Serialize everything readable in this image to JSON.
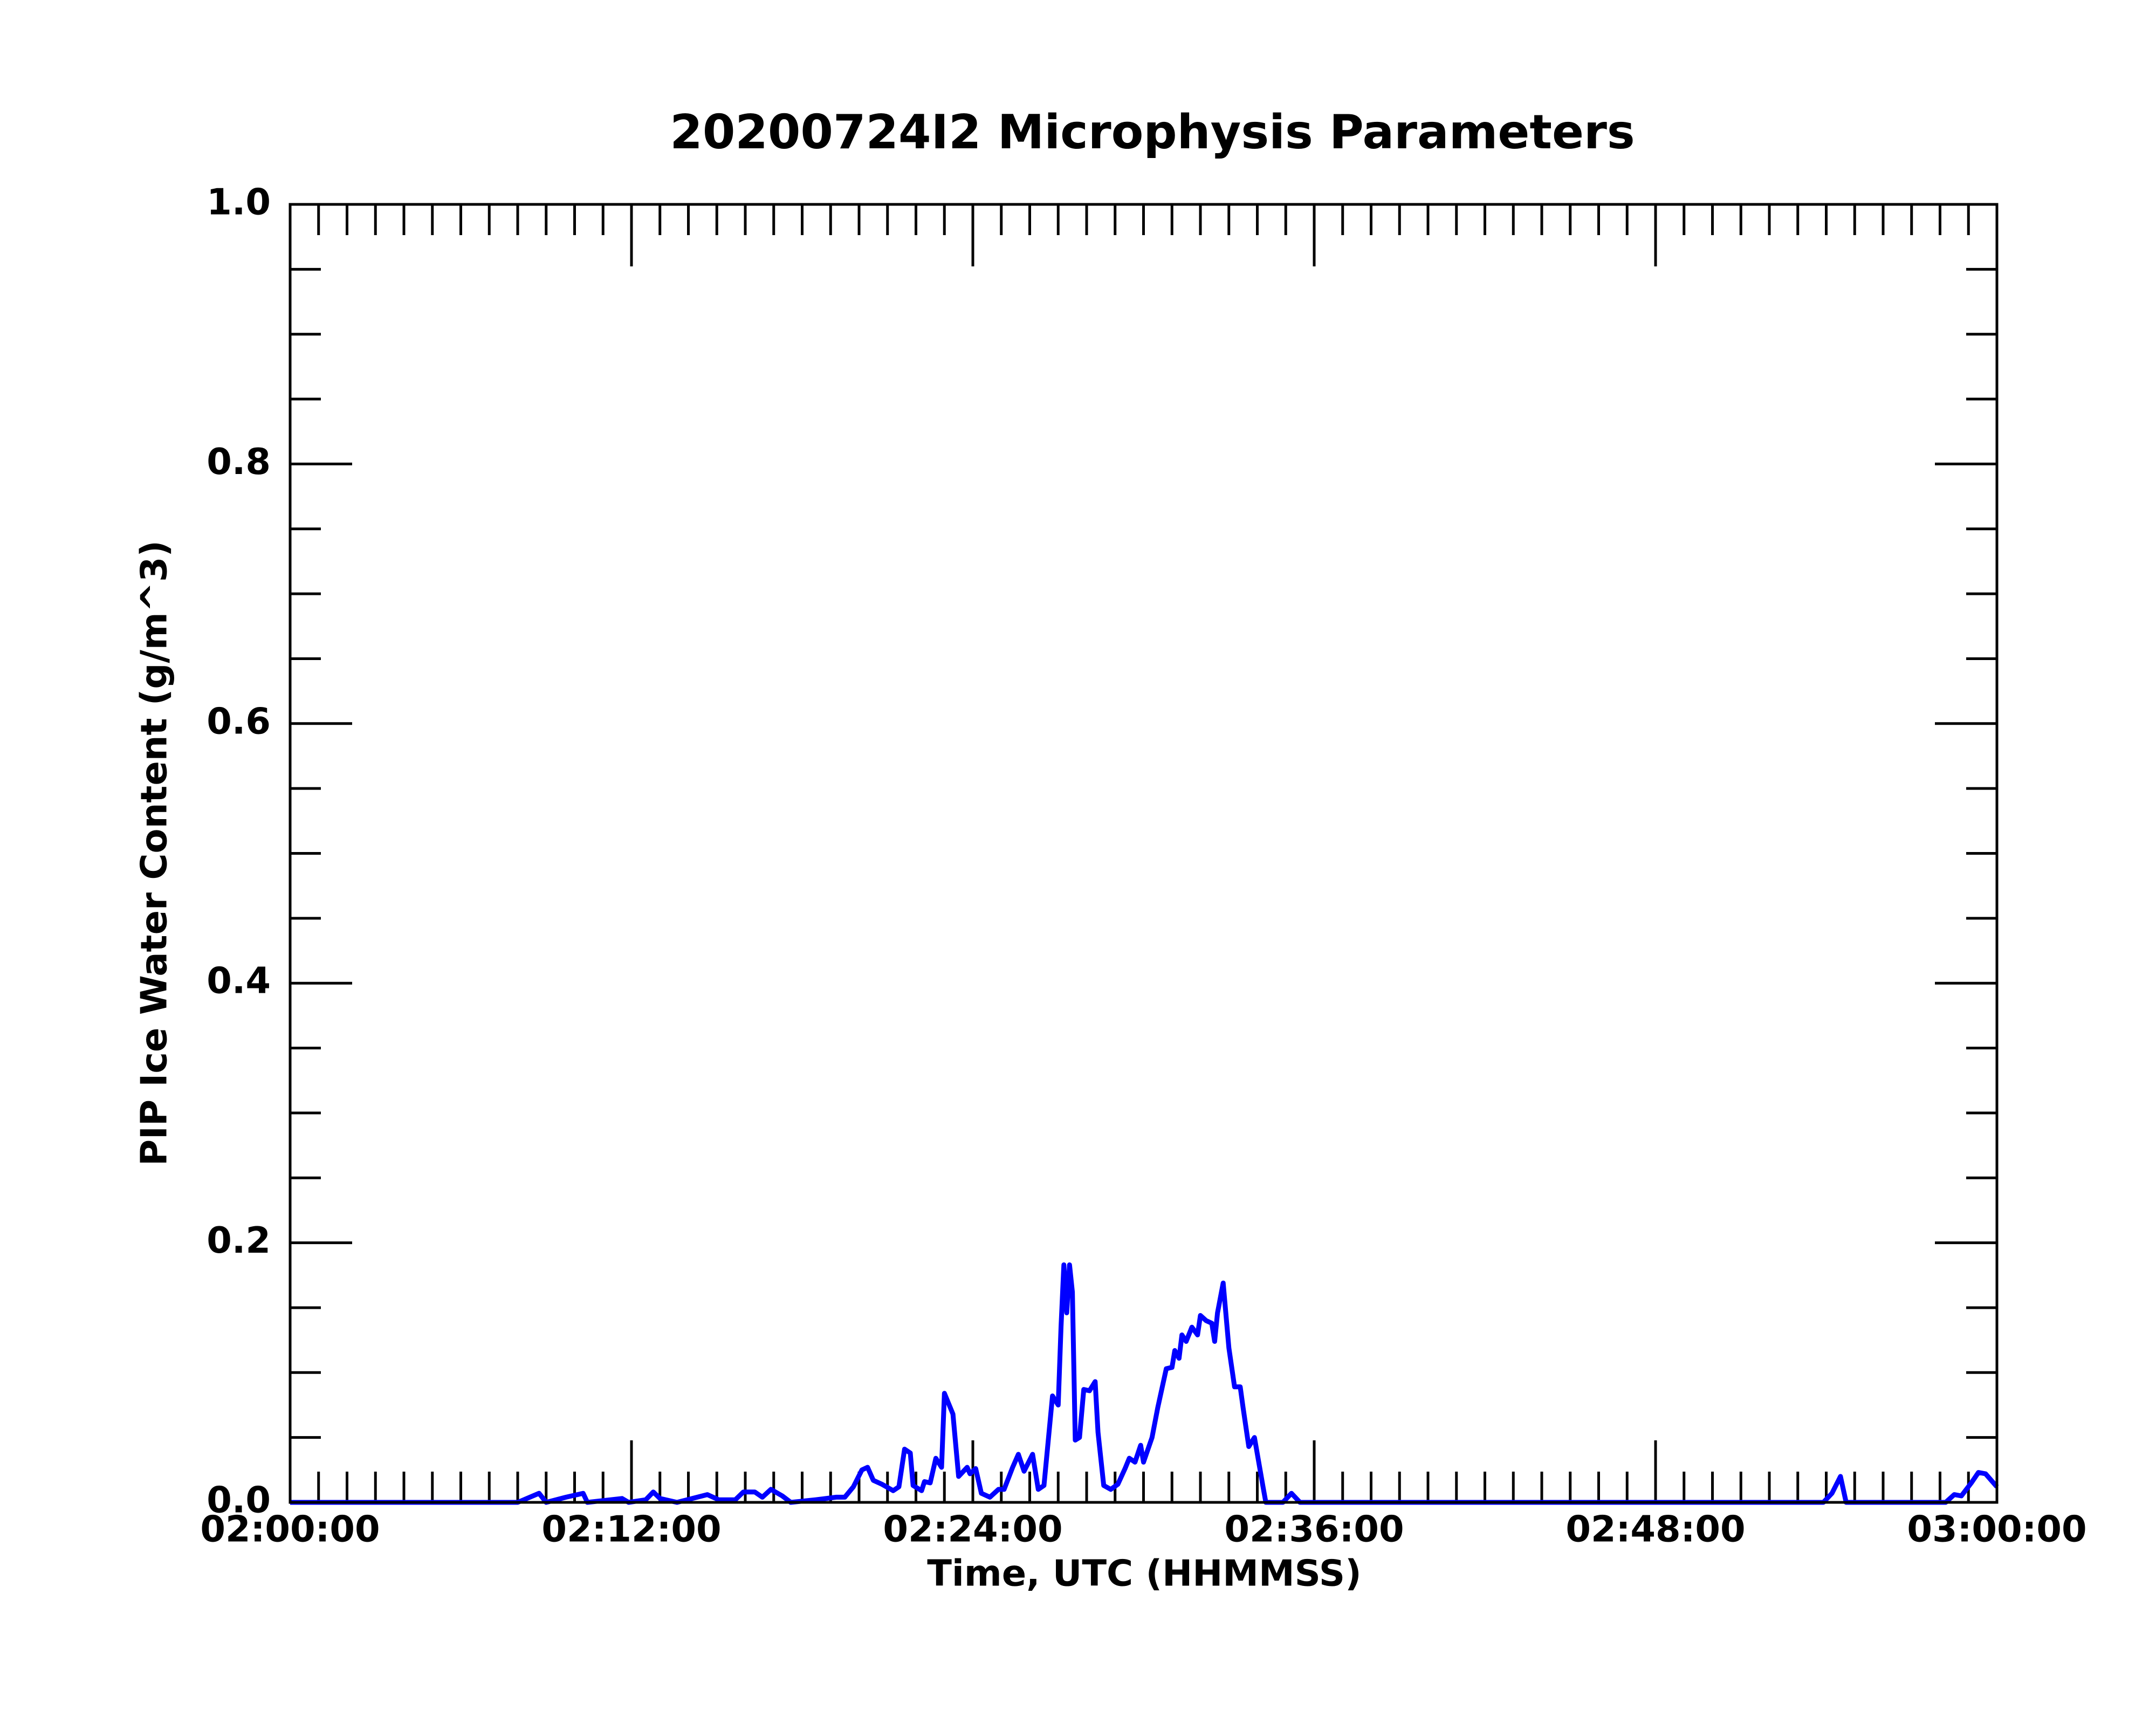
{
  "chart_data": {
    "type": "line",
    "title": "20200724I2 Microphysis Parameters",
    "x_label": "Time, UTC (HHMMSS)",
    "y_label": "PIP Ice Water Content (g/m^3)",
    "xlim": [
      "02:00:00",
      "03:00:00"
    ],
    "xticks": [
      "02:00:00",
      "02:12:00",
      "02:24:00",
      "02:36:00",
      "02:48:00",
      "03:00:00"
    ],
    "ylim": [
      0,
      1
    ],
    "yticks": [
      {
        "value": 0,
        "label": "0.0"
      },
      0.2,
      0.4,
      0.6,
      0.8,
      {
        "value": 1,
        "label": "1.0"
      }
    ],
    "grid": false,
    "x": [
      "02:00:00",
      "02:08:00",
      "02:08:45",
      "02:09:00",
      "02:09:42",
      "02:10:18",
      "02:10:27",
      "02:11:40",
      "02:11:54",
      "02:12:30",
      "02:12:46",
      "02:13:00",
      "02:13:36",
      "02:14:40",
      "02:15:04",
      "02:15:39",
      "02:15:56",
      "02:16:20",
      "02:16:36",
      "02:16:54",
      "02:17:18",
      "02:17:36",
      "02:18:28",
      "02:19:12",
      "02:19:30",
      "02:19:48",
      "02:20:06",
      "02:20:18",
      "02:20:30",
      "02:20:48",
      "02:21:12",
      "02:21:24",
      "02:21:36",
      "02:21:48",
      "02:21:54",
      "02:22:12",
      "02:22:18",
      "02:22:30",
      "02:22:42",
      "02:22:54",
      "02:23:00",
      "02:23:18",
      "02:23:30",
      "02:23:48",
      "02:23:54",
      "02:24:06",
      "02:24:18",
      "02:24:36",
      "02:24:54",
      "02:25:06",
      "02:25:24",
      "02:25:36",
      "02:25:48",
      "02:26:06",
      "02:26:18",
      "02:26:30",
      "02:26:48",
      "02:27:00",
      "02:27:06",
      "02:27:12",
      "02:27:18",
      "02:27:24",
      "02:27:30",
      "02:27:36",
      "02:27:45",
      "02:27:54",
      "02:28:06",
      "02:28:18",
      "02:28:24",
      "02:28:36",
      "02:28:51",
      "02:29:06",
      "02:29:21",
      "02:29:30",
      "02:29:42",
      "02:29:54",
      "02:30:00",
      "02:30:18",
      "02:30:30",
      "02:30:48",
      "02:31:00",
      "02:31:06",
      "02:31:15",
      "02:31:21",
      "02:31:30",
      "02:31:42",
      "02:31:54",
      "02:32:00",
      "02:32:12",
      "02:32:24",
      "02:32:30",
      "02:32:36",
      "02:32:48",
      "02:33:00",
      "02:33:12",
      "02:33:24",
      "02:33:30",
      "02:33:42",
      "02:33:54",
      "02:34:12",
      "02:34:18",
      "02:34:54",
      "02:35:12",
      "02:35:30",
      "02:53:54",
      "02:54:12",
      "02:54:30",
      "02:54:42",
      "02:58:12",
      "02:58:30",
      "02:58:45",
      "02:59:06",
      "02:59:21",
      "02:59:36",
      "03:00:00"
    ],
    "series": [
      {
        "name": "PIP Ice Water Content",
        "color": "#0000ff",
        "values": [
          0,
          0,
          0.007,
          0,
          0.004,
          0.007,
          0,
          0.003,
          0,
          0.002,
          0.008,
          0.003,
          0,
          0.006,
          0.002,
          0.002,
          0.008,
          0.008,
          0.004,
          0.01,
          0.005,
          0,
          0.002,
          0.004,
          0.004,
          0.012,
          0.025,
          0.027,
          0.017,
          0.014,
          0.009,
          0.012,
          0.041,
          0.038,
          0.013,
          0.009,
          0.016,
          0.015,
          0.034,
          0.027,
          0.084,
          0.068,
          0.02,
          0.027,
          0.022,
          0.026,
          0.007,
          0.004,
          0.01,
          0.01,
          0.027,
          0.037,
          0.024,
          0.037,
          0.01,
          0.013,
          0.082,
          0.075,
          0.135,
          0.183,
          0.146,
          0.183,
          0.162,
          0.048,
          0.05,
          0.087,
          0.086,
          0.093,
          0.054,
          0.013,
          0.01,
          0.014,
          0.026,
          0.034,
          0.031,
          0.044,
          0.031,
          0.05,
          0.073,
          0.103,
          0.104,
          0.117,
          0.111,
          0.129,
          0.124,
          0.135,
          0.129,
          0.144,
          0.14,
          0.138,
          0.124,
          0.146,
          0.169,
          0.119,
          0.089,
          0.089,
          0.073,
          0.043,
          0.05,
          0.012,
          0,
          0,
          0.007,
          0,
          0,
          0.007,
          0.02,
          0,
          0,
          0.006,
          0.005,
          0.015,
          0.023,
          0.022,
          0.012
        ]
      }
    ]
  }
}
